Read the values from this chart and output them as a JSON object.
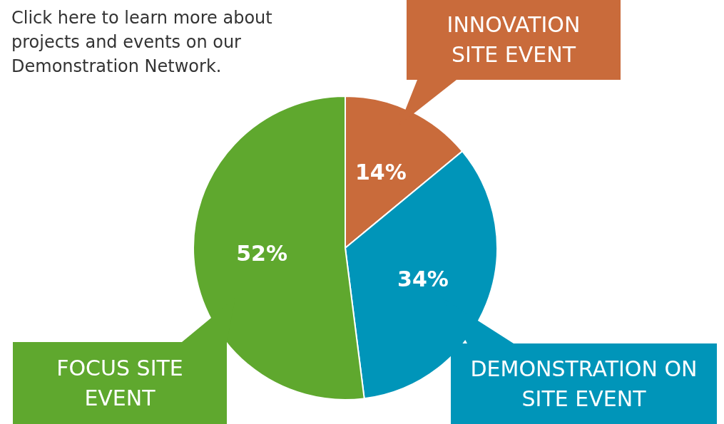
{
  "chart_data": {
    "type": "pie",
    "categories": [
      "INNOVATION SITE EVENT",
      "DEMONSTRATION ON SITE EVENT",
      "FOCUS SITE EVENT"
    ],
    "values": [
      14,
      34,
      52
    ],
    "colors": [
      "#c96b3b",
      "#0095b9",
      "#5fa82e"
    ],
    "value_labels": [
      "14%",
      "34%",
      "52%"
    ],
    "annotations": [
      "Click here to learn more about projects and events on our Demonstration Network."
    ],
    "legend": "bottom"
  }
}
